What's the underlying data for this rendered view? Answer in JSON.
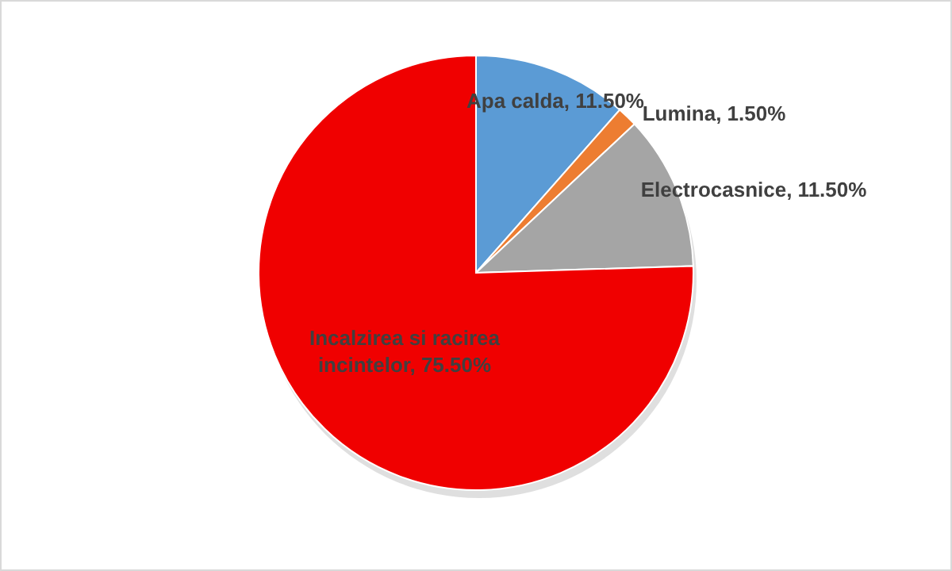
{
  "chart_data": {
    "type": "pie",
    "categories": [
      "Apa calda",
      "Lumina",
      "Electrocasnice",
      "Incalzirea si racirea incintelor"
    ],
    "values": [
      11.5,
      1.5,
      11.5,
      75.5
    ],
    "colors": [
      "#5b9bd5",
      "#ed7d31",
      "#a5a5a5",
      "#f00000"
    ],
    "data_labels": true,
    "value_labels": [
      "11.50%",
      "1.50%",
      "11.50%",
      "75.50%"
    ]
  }
}
